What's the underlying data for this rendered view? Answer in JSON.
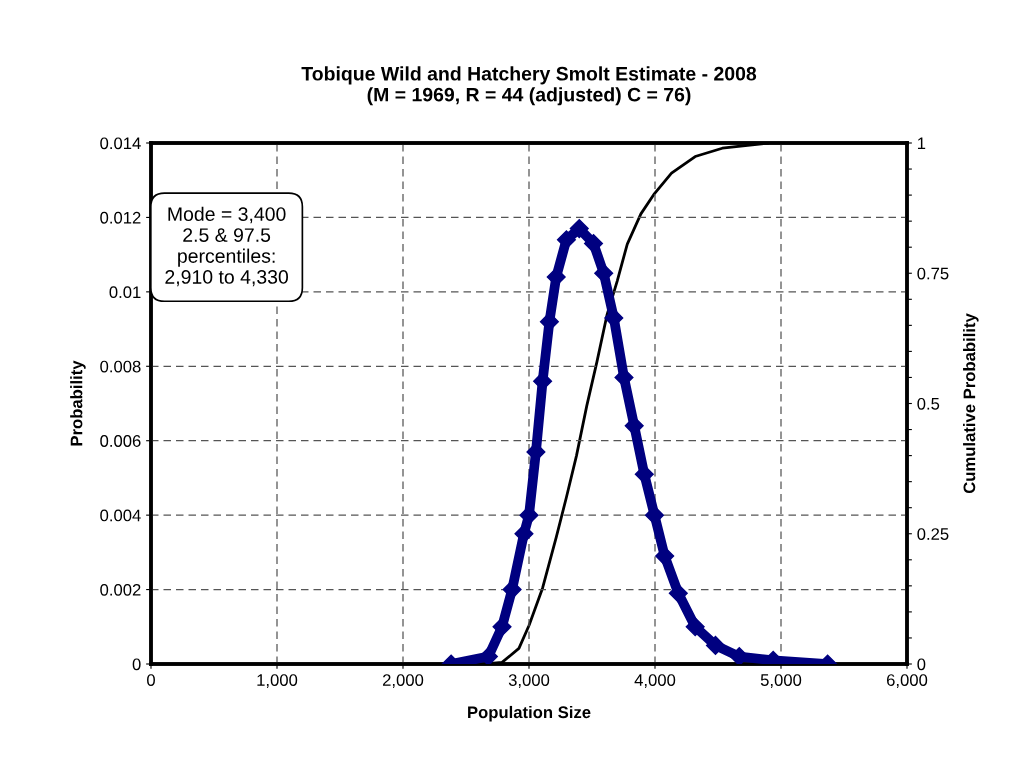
{
  "chart_data": {
    "type": "line",
    "title": "Tobique Wild and Hatchery Smolt Estimate - 2008\n(M = 1969, R = 44 (adjusted) C = 76)",
    "xlabel": "Population Size",
    "ylabel": "Probability",
    "y2label": "Cumulative Probability",
    "annotations": [
      "Mode = 3,400\n2.5 & 97.5\npercentiles:\n2,910 to 4,330"
    ],
    "series": [
      {
        "color": "#000080",
        "marker": "diamond",
        "line_style": "solid",
        "x": [
          2382,
          2678,
          2786,
          2866,
          2960,
          3000,
          3055,
          3108,
          3162,
          3216,
          3297,
          3399,
          3512,
          3593,
          3673,
          3754,
          3835,
          3915,
          3996,
          4077,
          4185,
          4319,
          4480,
          4669,
          4938,
          5370
        ],
        "values": [
          0,
          0.0002,
          0.001,
          0.002,
          0.0035,
          0.004,
          0.0057,
          0.0076,
          0.0092,
          0.0104,
          0.0114,
          0.0117,
          0.0113,
          0.0105,
          0.0093,
          0.0077,
          0.0064,
          0.0051,
          0.004,
          0.0029,
          0.0019,
          0.001,
          0.0005,
          0.0002,
          0.0001,
          0
        ]
      },
      {
        "type": "line",
        "axis": "y2",
        "color": "#000000",
        "marker": "none",
        "line_style": "solid",
        "x": [
          2651,
          2786,
          2920,
          3000,
          3108,
          3216,
          3297,
          3377,
          3458,
          3539,
          3619,
          3700,
          3780,
          3888,
          3996,
          4131,
          4319,
          4534,
          4900
        ],
        "values": [
          0,
          0.003,
          0.03,
          0.074,
          0.146,
          0.243,
          0.32,
          0.4,
          0.495,
          0.58,
          0.67,
          0.735,
          0.806,
          0.864,
          0.903,
          0.942,
          0.974,
          0.99,
          1
        ]
      }
    ],
    "xlim": [
      0,
      6000
    ],
    "xticks": [
      0,
      {
        "value": 1000,
        "label": "1,000"
      },
      {
        "value": 2000,
        "label": "2,000"
      },
      {
        "value": 3000,
        "label": "3,000"
      },
      {
        "value": 4000,
        "label": "4,000"
      },
      {
        "value": 5000,
        "label": "5,000"
      },
      {
        "value": 6000,
        "label": "6,000"
      }
    ],
    "ylim": [
      0,
      0.014
    ],
    "yticks": [
      0,
      0.002,
      0.004,
      0.006,
      0.008,
      0.01,
      0.012,
      0.014
    ],
    "y2lim": [
      0,
      1
    ],
    "y2ticks": [
      0,
      {
        "value": 0.05,
        "label": null
      },
      {
        "value": 0.1,
        "label": null
      },
      {
        "value": 0.15,
        "label": null
      },
      {
        "value": 0.2,
        "label": null
      },
      0.25,
      {
        "value": 0.3,
        "label": null
      },
      {
        "value": 0.35,
        "label": null
      },
      {
        "value": 0.4,
        "label": null
      },
      {
        "value": 0.45,
        "label": null
      },
      0.5,
      {
        "value": 0.55,
        "label": null
      },
      {
        "value": 0.6,
        "label": null
      },
      {
        "value": 0.65,
        "label": null
      },
      {
        "value": 0.7,
        "label": null
      },
      0.75,
      {
        "value": 0.8,
        "label": null
      },
      {
        "value": 0.85,
        "label": null
      },
      {
        "value": 0.9,
        "label": null
      },
      {
        "value": 0.95,
        "label": null
      },
      1
    ],
    "grid": true,
    "legend": false
  }
}
